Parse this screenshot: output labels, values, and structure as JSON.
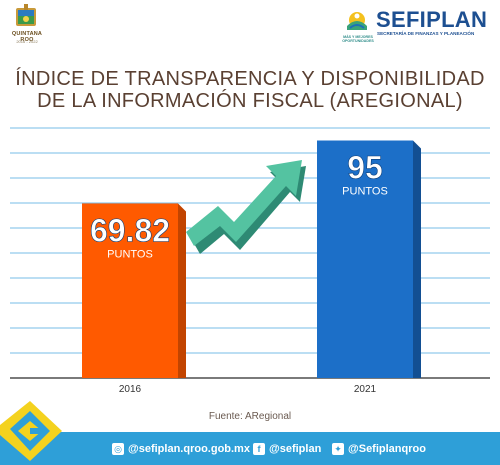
{
  "header": {
    "left_logo": {
      "name": "QUINTANA ROO",
      "years": "2016 - 2022"
    },
    "right_logo": {
      "name": "SEFIPLAN",
      "subtitle": "SECRETARÍA DE FINANZAS Y PLANEACIÓN",
      "badge_text": "MÁS Y MEJORES OPORTUNIDADES"
    }
  },
  "colors": {
    "bar_2016": "#ff5a00",
    "bar_2016_shadow": "#c24400",
    "bar_2021": "#1c6fc8",
    "bar_2021_shadow": "#124f93",
    "arrow": "#54c3a1",
    "arrow_shadow": "#2e8a74",
    "grid": "#4aa8e0",
    "footer": "#2e9fd8",
    "title": "#5a4032"
  },
  "chart_data": {
    "type": "bar",
    "title": "ÍNDICE DE TRANSPARENCIA Y DISPONIBILIDAD DE LA INFORMACIÓN FISCAL (AREGIONAL)",
    "title_lines": [
      "ÍNDICE DE TRANSPARENCIA Y DISPONIBILIDAD",
      "DE LA INFORMACIÓN FISCAL (AREGIONAL)"
    ],
    "categories": [
      "2016",
      "2021"
    ],
    "values": [
      69.82,
      95
    ],
    "value_labels": [
      "69.82",
      "95"
    ],
    "unit_label": "PUNTOS",
    "ylim": [
      0,
      100
    ],
    "grid": true,
    "trend_arrow": "up",
    "source": "Fuente: ARegional"
  },
  "footer": {
    "items": [
      {
        "icon": "web-icon",
        "text": "@sefiplan.qroo.gob.mx"
      },
      {
        "icon": "facebook-icon",
        "text": "@sefiplan"
      },
      {
        "icon": "twitter-icon",
        "text": "@Sefiplanqroo"
      }
    ]
  }
}
